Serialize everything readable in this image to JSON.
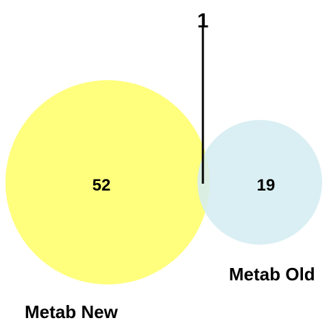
{
  "diagram": {
    "type": "venn",
    "sets": [
      {
        "label": "Metab New",
        "only_count": "52",
        "color": "#ffff66"
      },
      {
        "label": "Metab Old",
        "only_count": "19",
        "color": "#d4ecf2"
      }
    ],
    "intersection": {
      "count": "1",
      "line_color": "#000000"
    }
  }
}
